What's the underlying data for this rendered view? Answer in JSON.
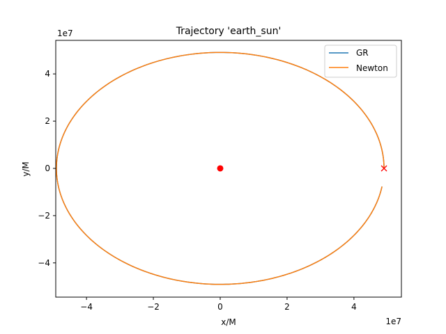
{
  "chart_data": {
    "type": "line",
    "title": "Trajectory 'earth_sun'",
    "xlabel": "x/M",
    "ylabel": "y/M",
    "x_offset_text": "1e7",
    "y_offset_text": "1e7",
    "xlim": [
      -49.2,
      54.2
    ],
    "ylim": [
      -54.5,
      54.2
    ],
    "xticks": [
      -4,
      -2,
      0,
      2,
      4
    ],
    "yticks": [
      -4,
      -2,
      0,
      2,
      4
    ],
    "xtick_labels": [
      "−4",
      "−2",
      "0",
      "2",
      "4"
    ],
    "ytick_labels": [
      "−4",
      "−2",
      "0",
      "2",
      "4"
    ],
    "xtick_values": [
      -40,
      -20,
      0,
      20,
      40
    ],
    "ytick_values": [
      -40,
      -20,
      0,
      20,
      40
    ],
    "legend_position": "upper right",
    "grid": false,
    "orbit": {
      "center_x": 0.0,
      "center_y": 0.0,
      "semi_major_x": 49.0,
      "semi_minor_y": 49.1,
      "start_angle_deg": 0,
      "end_angle_deg": 351,
      "closing_gap_point_y": -7.0
    },
    "series": [
      {
        "name": "GR",
        "color": "#1f77b4"
      },
      {
        "name": "Newton",
        "color": "#ff7f0e"
      }
    ],
    "markers": [
      {
        "kind": "circle",
        "x": 0.0,
        "y": 0.0,
        "color": "#ff0000"
      },
      {
        "kind": "cross",
        "x": 49.0,
        "y": 0.0,
        "color": "#ff0000"
      }
    ]
  }
}
